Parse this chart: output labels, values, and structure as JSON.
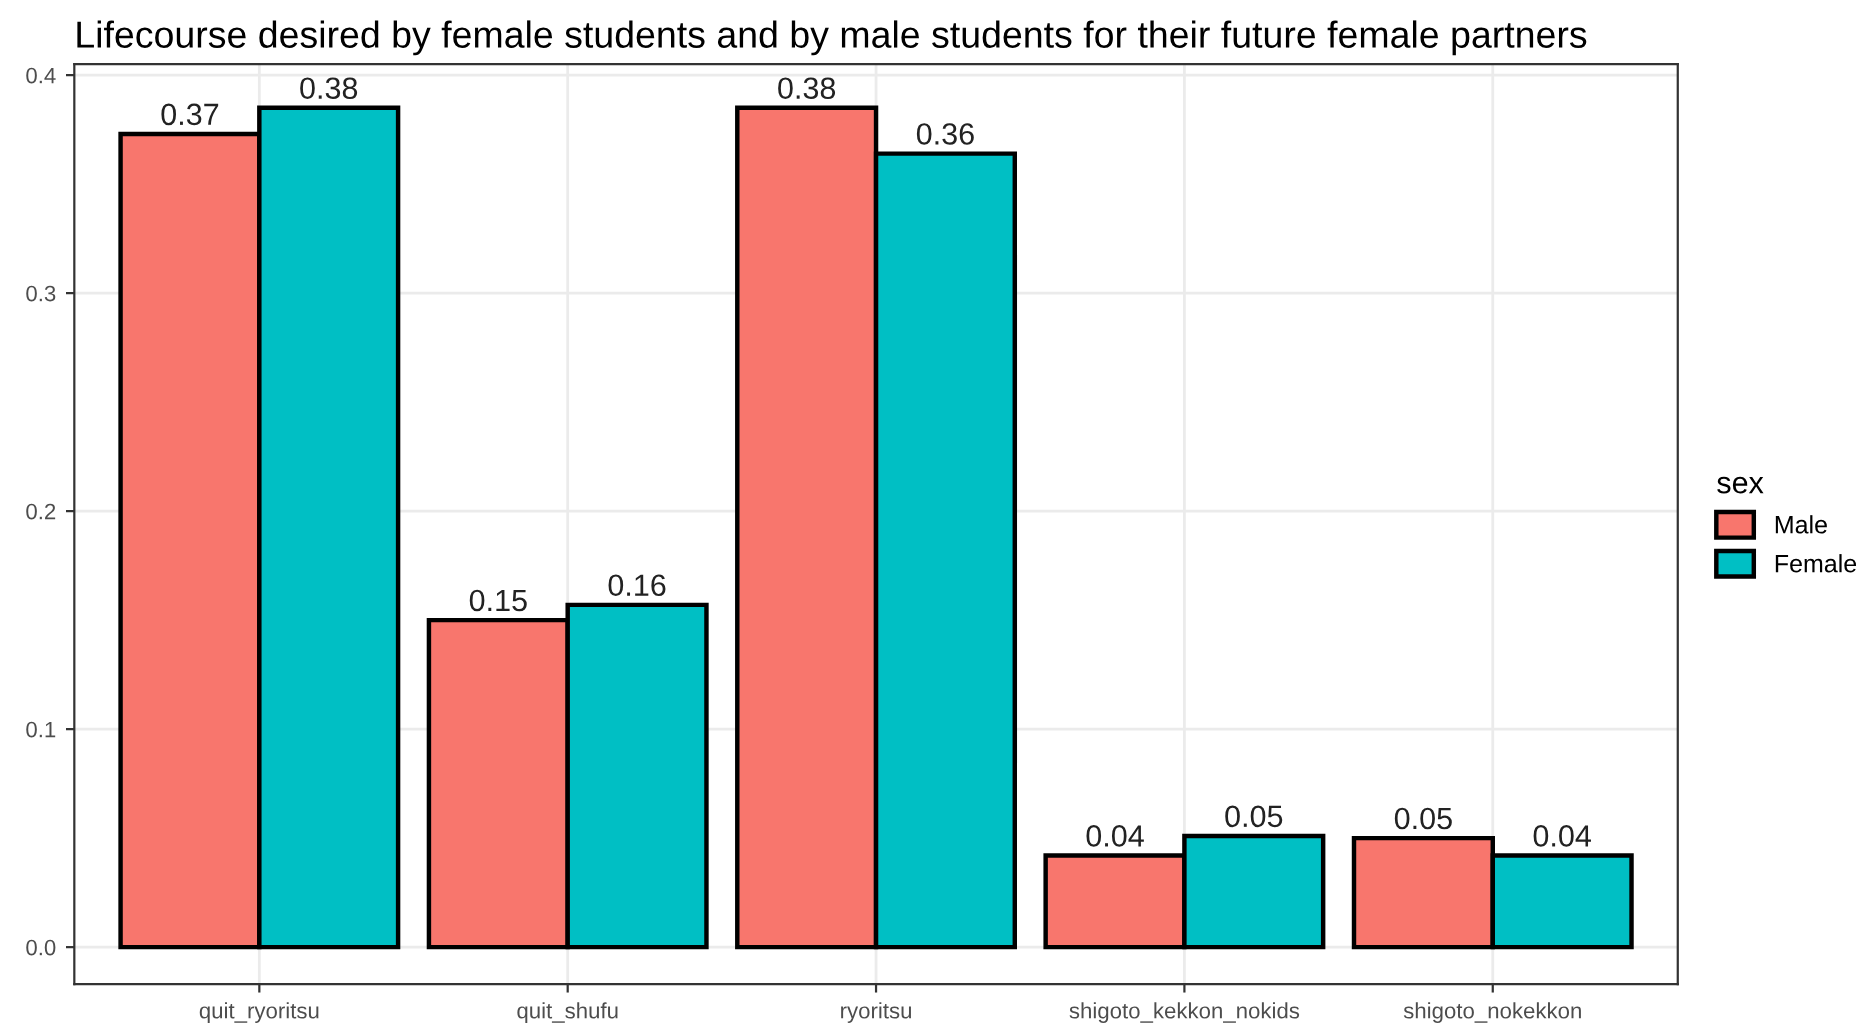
{
  "chart_data": {
    "type": "bar",
    "title": "Lifecourse desired by female students and by male students for their future female partners",
    "categories": [
      "quit_ryoritsu",
      "quit_shufu",
      "ryoritsu",
      "shigoto_kekkon_nokids",
      "shigoto_nokekkon"
    ],
    "series": [
      {
        "name": "Male",
        "color": "#f8766d",
        "values": [
          0.373,
          0.15,
          0.385,
          0.042,
          0.05
        ],
        "value_labels": [
          "0.37",
          "0.15",
          "0.38",
          "0.04",
          "0.05"
        ]
      },
      {
        "name": "Female",
        "color": "#00bfc4",
        "values": [
          0.385,
          0.157,
          0.364,
          0.051,
          0.042
        ],
        "value_labels": [
          "0.38",
          "0.16",
          "0.36",
          "0.05",
          "0.04"
        ]
      }
    ],
    "legend_title": "sex",
    "legend": "right",
    "grid": true,
    "ylim": [
      -0.017,
      0.405
    ],
    "yticks": [
      {
        "value": 0,
        "label": "0.0"
      },
      0.1,
      0.2,
      0.3,
      0.4
    ]
  }
}
